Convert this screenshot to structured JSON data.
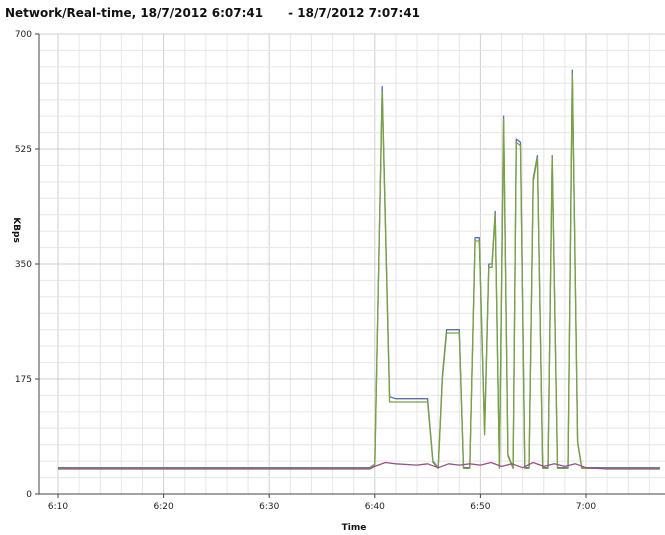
{
  "title": "Network/Real-time, 18/7/2012 6:07:41      - 18/7/2012 7:07:41",
  "chart_data": {
    "type": "line",
    "title": "Network/Real-time, 18/7/2012 6:07:41      - 18/7/2012 7:07:41",
    "xlabel": "Time",
    "ylabel": "KBps",
    "ylim": [
      0,
      700
    ],
    "yticks": [
      0,
      175,
      350,
      525,
      700
    ],
    "xticks": [
      "6:10",
      "6:20",
      "6:30",
      "6:40",
      "6:50",
      "7:00"
    ],
    "xlim": [
      "6:10",
      "7:07"
    ],
    "grid": true,
    "colors": {
      "green": "#7aa33e",
      "blue": "#5a6fb0",
      "purple": "#9a4f8a"
    },
    "series": [
      {
        "color": "#5a6fb0",
        "points": [
          [
            "6:10",
            40
          ],
          [
            "6:15",
            40
          ],
          [
            "6:20",
            40
          ],
          [
            "6:25",
            40
          ],
          [
            "6:30",
            40
          ],
          [
            "6:35",
            40
          ],
          [
            "6:39.5",
            40
          ],
          [
            "6:40",
            45
          ],
          [
            "6:40.7",
            620
          ],
          [
            "6:41.4",
            148
          ],
          [
            "6:42",
            145
          ],
          [
            "6:44",
            145
          ],
          [
            "6:45",
            145
          ],
          [
            "6:45.5",
            50
          ],
          [
            "6:46",
            40
          ],
          [
            "6:46.4",
            180
          ],
          [
            "6:46.8",
            250
          ],
          [
            "6:48",
            250
          ],
          [
            "6:48.4",
            40
          ],
          [
            "6:49",
            40
          ],
          [
            "6:49.5",
            390
          ],
          [
            "6:49.9",
            390
          ],
          [
            "6:50.4",
            95
          ],
          [
            "6:50.8",
            350
          ],
          [
            "6:51.1",
            350
          ],
          [
            "6:51.4",
            430
          ],
          [
            "6:51.8",
            40
          ],
          [
            "6:52.2",
            575
          ],
          [
            "6:52.6",
            60
          ],
          [
            "6:53.1",
            40
          ],
          [
            "6:53.4",
            540
          ],
          [
            "6:53.8",
            535
          ],
          [
            "6:54.2",
            40
          ],
          [
            "6:54.6",
            40
          ],
          [
            "6:55",
            480
          ],
          [
            "6:55.4",
            515
          ],
          [
            "6:55.9",
            40
          ],
          [
            "6:56.4",
            40
          ],
          [
            "6:56.8",
            515
          ],
          [
            "6:57.3",
            40
          ],
          [
            "6:57.7",
            40
          ],
          [
            "6:58.3",
            40
          ],
          [
            "6:58.7",
            645
          ],
          [
            "6:59.2",
            80
          ],
          [
            "6:59.6",
            40
          ],
          [
            "7:00",
            40
          ],
          [
            "7:02",
            40
          ],
          [
            "7:07",
            40
          ]
        ]
      },
      {
        "color": "#7aa33e",
        "points": [
          [
            "6:10",
            39
          ],
          [
            "6:15",
            39
          ],
          [
            "6:20",
            39
          ],
          [
            "6:25",
            39
          ],
          [
            "6:30",
            39
          ],
          [
            "6:35",
            39
          ],
          [
            "6:39.5",
            39
          ],
          [
            "6:40",
            44
          ],
          [
            "6:40.7",
            612
          ],
          [
            "6:41.4",
            140
          ],
          [
            "6:42",
            140
          ],
          [
            "6:44",
            140
          ],
          [
            "6:45",
            140
          ],
          [
            "6:45.5",
            48
          ],
          [
            "6:46",
            39
          ],
          [
            "6:46.4",
            175
          ],
          [
            "6:46.8",
            245
          ],
          [
            "6:48",
            245
          ],
          [
            "6:48.4",
            39
          ],
          [
            "6:49",
            39
          ],
          [
            "6:49.5",
            385
          ],
          [
            "6:49.9",
            385
          ],
          [
            "6:50.4",
            90
          ],
          [
            "6:50.8",
            345
          ],
          [
            "6:51.1",
            345
          ],
          [
            "6:51.4",
            425
          ],
          [
            "6:51.8",
            39
          ],
          [
            "6:52.2",
            570
          ],
          [
            "6:52.6",
            58
          ],
          [
            "6:53.1",
            39
          ],
          [
            "6:53.4",
            535
          ],
          [
            "6:53.8",
            530
          ],
          [
            "6:54.2",
            39
          ],
          [
            "6:54.6",
            39
          ],
          [
            "6:55",
            475
          ],
          [
            "6:55.4",
            512
          ],
          [
            "6:55.9",
            39
          ],
          [
            "6:56.4",
            39
          ],
          [
            "6:56.8",
            512
          ],
          [
            "6:57.3",
            39
          ],
          [
            "6:57.7",
            39
          ],
          [
            "6:58.3",
            39
          ],
          [
            "6:58.7",
            640
          ],
          [
            "6:59.2",
            78
          ],
          [
            "6:59.6",
            39
          ],
          [
            "7:00",
            39
          ],
          [
            "7:02",
            39
          ],
          [
            "7:07",
            39
          ]
        ]
      },
      {
        "color": "#9a4f8a",
        "points": [
          [
            "6:10",
            38
          ],
          [
            "6:20",
            38
          ],
          [
            "6:30",
            38
          ],
          [
            "6:39.5",
            38
          ],
          [
            "6:40",
            42
          ],
          [
            "6:41",
            48
          ],
          [
            "6:42",
            46
          ],
          [
            "6:44",
            44
          ],
          [
            "6:45",
            46
          ],
          [
            "6:46",
            40
          ],
          [
            "6:47",
            46
          ],
          [
            "6:48",
            44
          ],
          [
            "6:49",
            46
          ],
          [
            "6:50",
            44
          ],
          [
            "6:51",
            48
          ],
          [
            "6:52",
            42
          ],
          [
            "6:53",
            46
          ],
          [
            "6:54",
            40
          ],
          [
            "6:55",
            48
          ],
          [
            "6:56",
            42
          ],
          [
            "6:57",
            46
          ],
          [
            "6:58",
            42
          ],
          [
            "6:59",
            46
          ],
          [
            "7:00",
            40
          ],
          [
            "7:02",
            38
          ],
          [
            "7:07",
            38
          ]
        ]
      }
    ]
  }
}
